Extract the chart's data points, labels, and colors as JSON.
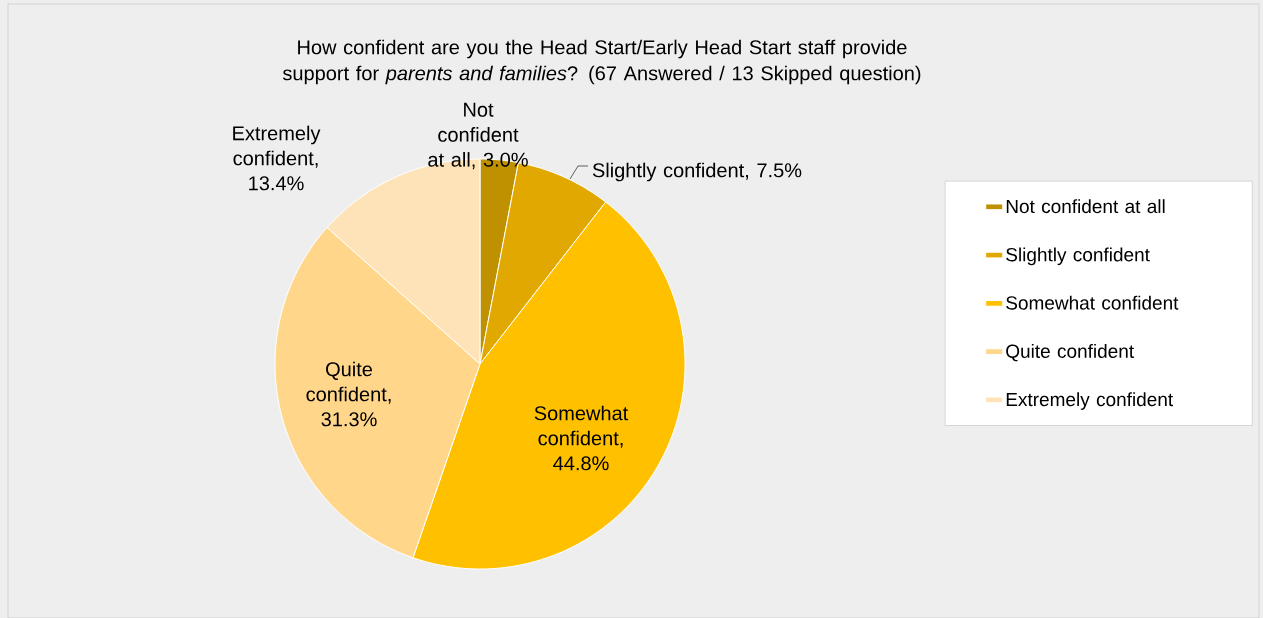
{
  "chart_data": {
    "type": "pie",
    "title": "How confident are you the Head Start/Early Head Start staff provide support for *parents and families*? (67 Answered / 13 Skipped question)",
    "categories": [
      "Not confident at all",
      "Slightly confident",
      "Somewhat confident",
      "Quite confident",
      "Extremely confident"
    ],
    "values": [
      3.0,
      7.5,
      44.8,
      31.3,
      13.4
    ],
    "value_labels": [
      "Not confident at all, 3.0%",
      "Slightly confident, 7.5%",
      "Somewhat confident, 44.8%",
      "Quite confident, 31.3%",
      "Extremely confident, 13.4%"
    ],
    "colors": [
      "#bf9000",
      "#e0a800",
      "#ffc000",
      "#ffd68a",
      "#ffe3b8"
    ],
    "legend": "right"
  }
}
